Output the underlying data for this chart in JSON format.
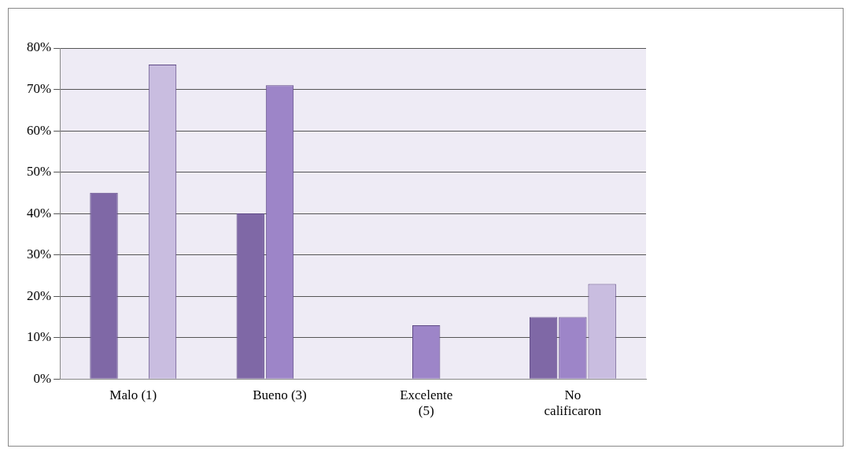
{
  "chart_data": {
    "type": "bar",
    "categories": [
      "Malo (1)",
      "Bueno (3)",
      "Excelente (5)",
      "No calificaron"
    ],
    "series": [
      {
        "color": "#7f68a6",
        "values": [
          45,
          40,
          0,
          15
        ]
      },
      {
        "color": "#9d85c8",
        "values": [
          0,
          71,
          13,
          15
        ]
      },
      {
        "color": "#c9bde0",
        "values": [
          76,
          0,
          0,
          23
        ]
      }
    ],
    "ylim": [
      0,
      80
    ],
    "yticks": [
      {
        "value": 0,
        "label": "0%"
      },
      {
        "value": 10,
        "label": "10%"
      },
      {
        "value": 20,
        "label": "20%"
      },
      {
        "value": 30,
        "label": "30%"
      },
      {
        "value": 40,
        "label": "40%"
      },
      {
        "value": 50,
        "label": "50%"
      },
      {
        "value": 60,
        "label": "60%"
      },
      {
        "value": 70,
        "label": "70%"
      },
      {
        "value": 80,
        "label": "80%"
      }
    ],
    "grid": "y"
  }
}
